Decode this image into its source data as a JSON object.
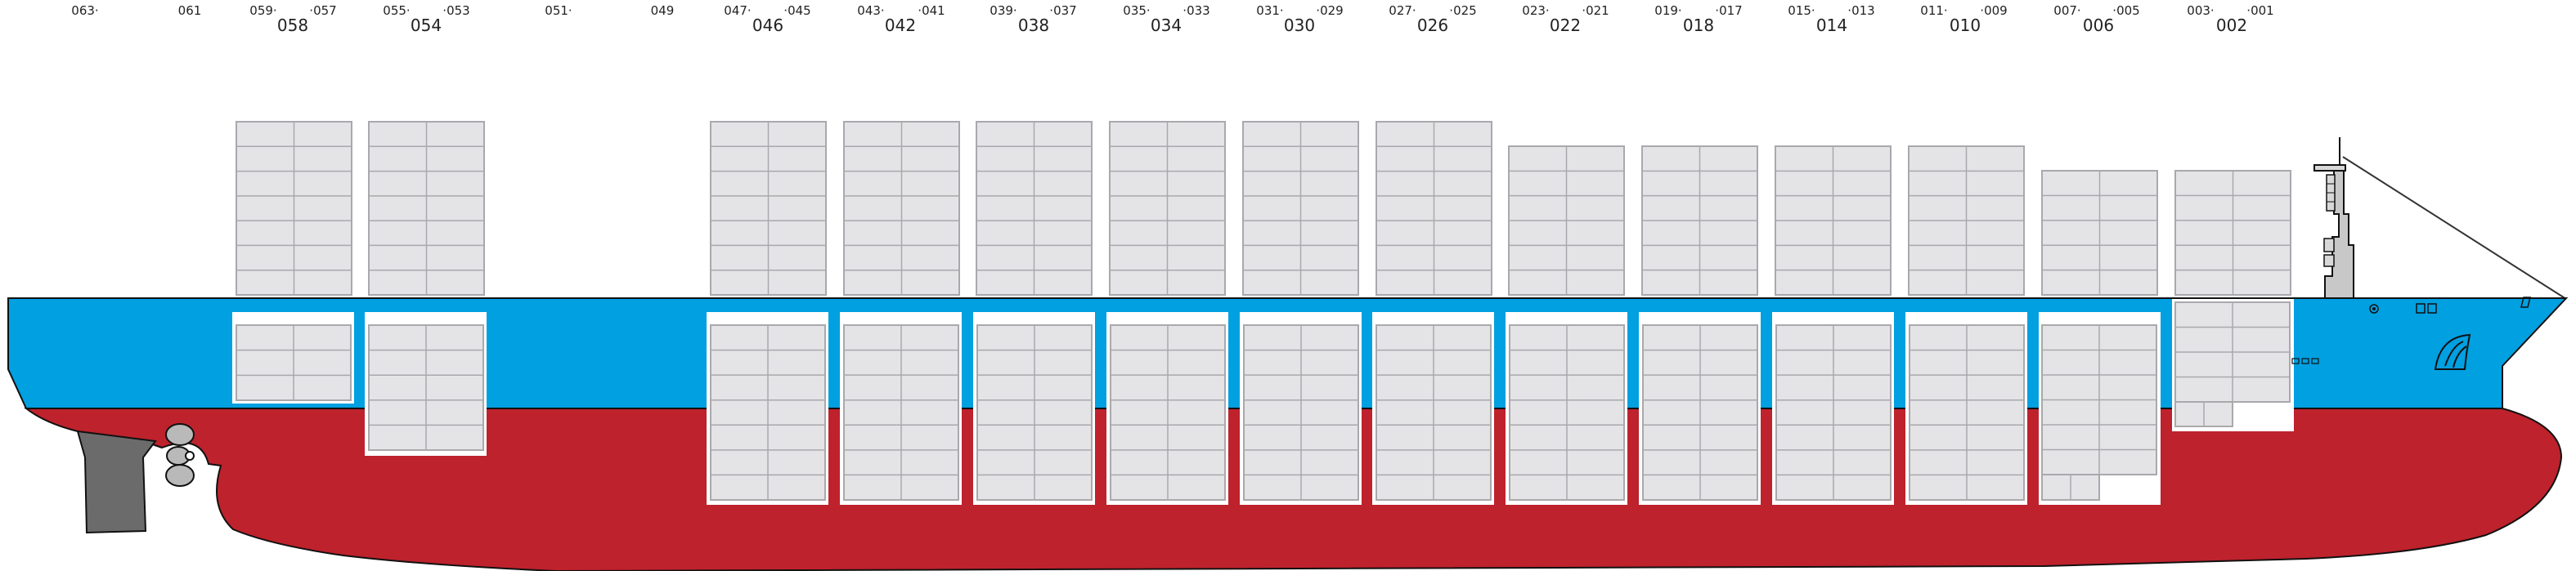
{
  "bay_labels": {
    "top_row": [
      "063·",
      "061",
      "059·",
      "·057",
      "055·",
      "·053",
      "051·",
      "049",
      "047·",
      "·045",
      "043·",
      "·041",
      "039·",
      "·037",
      "035·",
      "·033",
      "031·",
      "·029",
      "027·",
      "·025",
      "023·",
      "·021",
      "019·",
      "·017",
      "015·",
      "·013",
      "011·",
      "·009",
      "007·",
      "·005",
      "003·",
      "·001"
    ],
    "bottom_row": [
      "058",
      "054",
      "046",
      "042",
      "038",
      "034",
      "030",
      "026",
      "022",
      "018",
      "014",
      "010",
      "006",
      "002"
    ]
  },
  "colors": {
    "hull_red": "#be222c",
    "hull_blue": "#00a0e1",
    "container_fill": "#e4e4e7",
    "container_stroke": "#a9a9ad",
    "outline": "#111111",
    "rudder": "#6b6b6b",
    "propeller": "#b9b9b9"
  },
  "icons": {
    "ship": "container-ship-side-view",
    "bridge": "bridge-superstructure-icon",
    "bow_logo": "bow-emblem-icon"
  }
}
